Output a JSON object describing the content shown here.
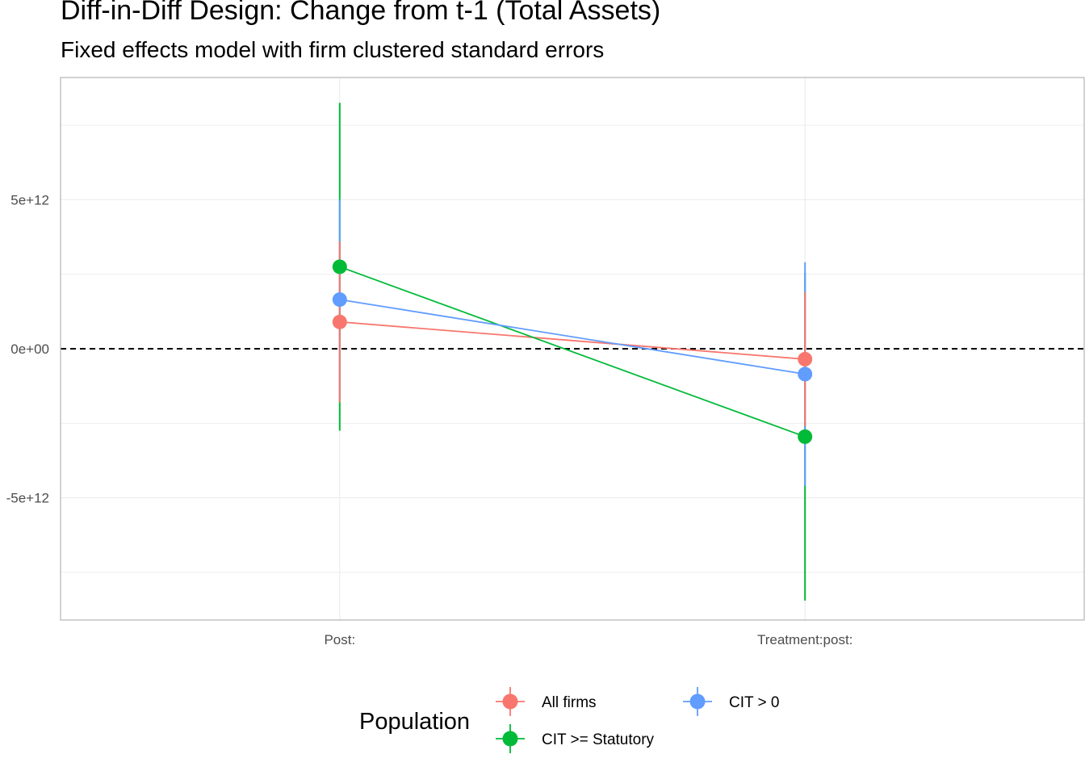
{
  "title": "Diff-in-Diff Design: Change from t-1 (Total Assets)",
  "subtitle": "Fixed effects model with firm clustered standard errors",
  "chart_data": {
    "type": "line",
    "title": "Diff-in-Diff Design: Change from t-1 (Total Assets)",
    "subtitle": "Fixed effects model with firm clustered standard errors",
    "xlabel": "",
    "ylabel": "",
    "categories": [
      "Post:",
      "Treatment:post:"
    ],
    "ylim": [
      -9100000000000.0,
      9100000000000.0
    ],
    "y_ticks": [
      -5000000000000.0,
      0,
      5000000000000.0
    ],
    "y_tick_labels": [
      "-5e+12",
      "0e+00",
      "5e+12"
    ],
    "reference_line": {
      "y": 0,
      "style": "dashed"
    },
    "grid": true,
    "legend": {
      "title": "Population",
      "position": "bottom"
    },
    "series": [
      {
        "name": "All firms",
        "color": "#F8766D",
        "values": [
          900000000000.0,
          -350000000000.0
        ],
        "ci_low": [
          -1800000000000.0,
          -2600000000000.0
        ],
        "ci_high": [
          3600000000000.0,
          1900000000000.0
        ]
      },
      {
        "name": "CIT >= Statutory",
        "color": "#00BA38",
        "values": [
          2750000000000.0,
          -2950000000000.0
        ],
        "ci_low": [
          -2750000000000.0,
          -8450000000000.0
        ],
        "ci_high": [
          8250000000000.0,
          2550000000000.0
        ]
      },
      {
        "name": "CIT > 0",
        "color": "#619CFF",
        "values": [
          1650000000000.0,
          -850000000000.0
        ],
        "ci_low": [
          -1700000000000.0,
          -4600000000000.0
        ],
        "ci_high": [
          5000000000000.0,
          2900000000000.0
        ]
      }
    ]
  }
}
